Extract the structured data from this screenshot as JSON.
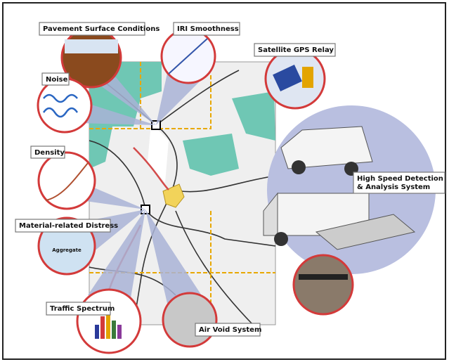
{
  "nodes": [
    {
      "label": "Pavement Surface Conditions"
    },
    {
      "label": "IRI Smoothness"
    },
    {
      "label": "Satellite GPS Relay"
    },
    {
      "label": "Noise"
    },
    {
      "label": "Density"
    },
    {
      "label": [
        "High Speed Detection",
        "& Analysis System"
      ]
    },
    {
      "label": "Material-related Distress",
      "inner_label": "Aggregate"
    },
    {
      "label": "Traffic Spectrum"
    },
    {
      "label": "Air Void System"
    }
  ]
}
